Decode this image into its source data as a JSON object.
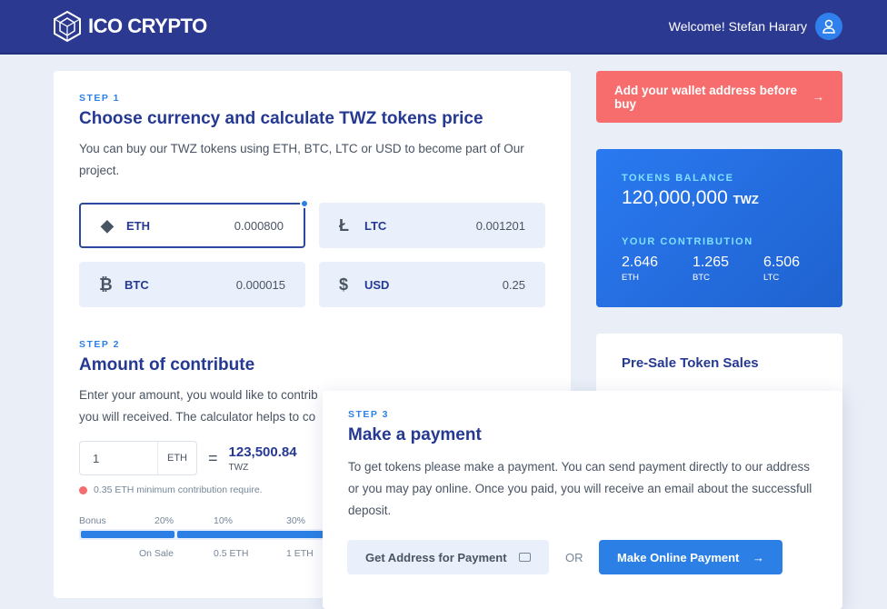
{
  "header": {
    "brand": "ICO CRYPTO",
    "welcome": "Welcome! Stefan Harary"
  },
  "step1": {
    "label": "STEP 1",
    "title": "Choose currency and calculate TWZ tokens price",
    "desc": "You can buy our TWZ tokens using ETH, BTC, LTC or USD to become part of Our project.",
    "currencies": [
      {
        "name": "ETH",
        "value": "0.000800",
        "icon": "ethereum-icon",
        "selected": true
      },
      {
        "name": "LTC",
        "value": "0.001201",
        "icon": "litecoin-icon"
      },
      {
        "name": "BTC",
        "value": "0.000015",
        "icon": "bitcoin-icon"
      },
      {
        "name": "USD",
        "value": "0.25",
        "icon": "dollar-icon"
      }
    ]
  },
  "step2": {
    "label": "STEP 2",
    "title": "Amount of contribute",
    "line1": "Enter your amount, you would like to contrib",
    "line2": "you will received. The calculator helps to co",
    "amount": "1",
    "unit": "ETH",
    "equals": "=",
    "result": "123,500.84",
    "result_unit": "TWZ",
    "warning": "0.35 ETH minimum contribution require.",
    "bonus": {
      "label": "Bonus",
      "percents": [
        "20%",
        "10%",
        "30%"
      ],
      "stages": [
        "On Sale",
        "0.5 ETH",
        "1 ETH"
      ]
    }
  },
  "wallet_alert": "Add your wallet address before buy",
  "balance": {
    "label": "TOKENS BALANCE",
    "amount": "120,000,000",
    "unit": "TWZ",
    "contrib_label": "YOUR CONTRIBUTION",
    "contributions": [
      {
        "value": "2.646",
        "unit": "ETH"
      },
      {
        "value": "1.265",
        "unit": "BTC"
      },
      {
        "value": "6.506",
        "unit": "LTC"
      }
    ]
  },
  "presale": {
    "title": "Pre-Sale Token Sales"
  },
  "step3": {
    "label": "STEP 3",
    "title": "Make a payment",
    "desc": "To get tokens please make a payment. You can send payment directly to our address or you may pay online. Once you paid, you will receive an email about the successfull deposit.",
    "address_btn": "Get Address for Payment",
    "or": "OR",
    "online_btn": "Make Online Payment"
  },
  "colors": {
    "header": "#2b3990",
    "accent": "#2c80e5",
    "alert": "#f76c6c"
  }
}
